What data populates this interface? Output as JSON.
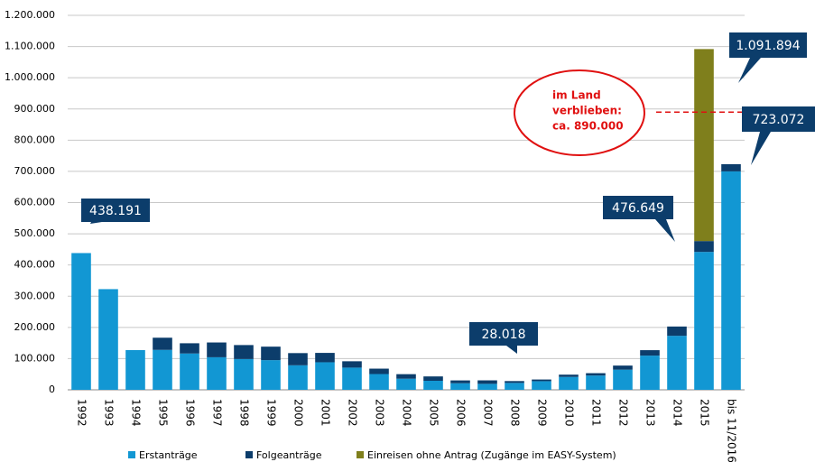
{
  "chart_data": {
    "type": "bar",
    "stacked": true,
    "categories": [
      "1992",
      "1993",
      "1994",
      "1995",
      "1996",
      "1997",
      "1998",
      "1999",
      "2000",
      "2001",
      "2002",
      "2003",
      "2004",
      "2005",
      "2006",
      "2007",
      "2008",
      "2009",
      "2010",
      "2011",
      "2012",
      "2013",
      "2014",
      "2015",
      "bis 11/2016"
    ],
    "series": [
      {
        "name": "Erstanträge",
        "color": "#1297d3",
        "values": [
          438191,
          322599,
          127210,
          127937,
          116367,
          104353,
          98644,
          95113,
          78564,
          88287,
          71127,
          50563,
          35607,
          28914,
          21029,
          19164,
          22085,
          27649,
          41332,
          45741,
          64539,
          109580,
          173072,
          441899,
          700000
        ]
      },
      {
        "name": "Folgeanträge",
        "color": "#0c3d6b",
        "values": [
          0,
          0,
          0,
          39014,
          32826,
          47347,
          44785,
          43206,
          39084,
          30019,
          20344,
          17285,
          14545,
          13994,
          9071,
          11139,
          5933,
          5384,
          7257,
          7606,
          13112,
          17443,
          29762,
          34750,
          23072
        ]
      },
      {
        "name": "Einreisen ohne Antrag (Zugänge im EASY-System)",
        "color": "#7f7f1c",
        "values": [
          null,
          null,
          null,
          null,
          null,
          null,
          null,
          null,
          null,
          null,
          null,
          null,
          null,
          null,
          null,
          null,
          null,
          null,
          null,
          null,
          null,
          null,
          null,
          615245,
          null
        ]
      }
    ],
    "ylim": [
      0,
      1200000
    ],
    "yticks": [
      0,
      {
        "value": 100000,
        "label": "100.000"
      },
      {
        "value": 200000,
        "label": "200.000"
      },
      {
        "value": 300000,
        "label": "300.000"
      },
      {
        "value": 400000,
        "label": "400.000"
      },
      {
        "value": 500000,
        "label": "500.000"
      },
      {
        "value": 600000,
        "label": "600.000"
      },
      {
        "value": 700000,
        "label": "700.000"
      },
      {
        "value": 800000,
        "label": "800.000"
      },
      {
        "value": 900000,
        "label": "900.000"
      },
      {
        "value": 1000000,
        "label": "1.000.000"
      },
      {
        "value": 1100000,
        "label": "1.100.000"
      },
      {
        "value": 1200000,
        "label": "1.200.000"
      }
    ],
    "grid": true,
    "legend": "bottom",
    "callouts": [
      "438.191",
      "28.018",
      "476.649",
      "1.091.894",
      "723.072"
    ],
    "reference_line": {
      "value": 890000,
      "lines": [
        "im Land",
        "verblieben:",
        "ca. 890.000"
      ]
    }
  }
}
